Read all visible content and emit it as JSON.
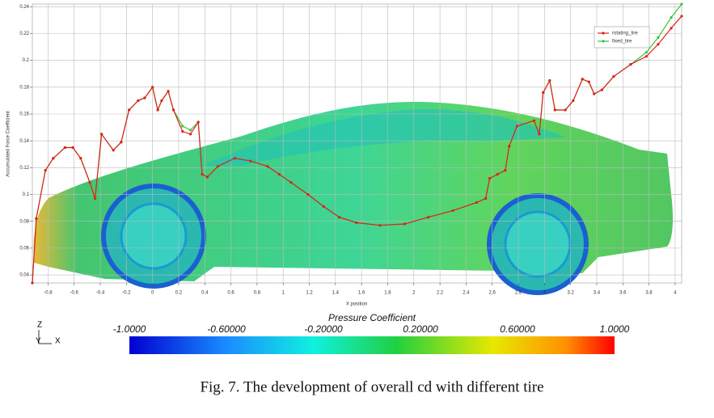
{
  "chart_data": {
    "type": "line",
    "x_label": "X position",
    "y_label": "Accumulated Force Coefficient",
    "x": [
      -0.92,
      -0.89,
      -0.82,
      -0.76,
      -0.67,
      -0.61,
      -0.55,
      -0.48,
      -0.44,
      -0.39,
      -0.3,
      -0.24,
      -0.18,
      -0.11,
      -0.06,
      0.0,
      0.04,
      0.07,
      0.12,
      0.16,
      0.23,
      0.29,
      0.35,
      0.38,
      0.42,
      0.5,
      0.63,
      0.75,
      0.88,
      0.97,
      1.06,
      1.19,
      1.31,
      1.43,
      1.56,
      1.74,
      1.93,
      2.11,
      2.3,
      2.48,
      2.55,
      2.58,
      2.64,
      2.7,
      2.73,
      2.79,
      2.92,
      2.96,
      2.99,
      3.04,
      3.08,
      3.16,
      3.22,
      3.29,
      3.34,
      3.38,
      3.44,
      3.53,
      3.66,
      3.78,
      3.87,
      3.97,
      4.05
    ],
    "series": [
      {
        "name": "rotating_tire",
        "color": "#e0201c",
        "values": [
          0.034,
          0.082,
          0.118,
          0.127,
          0.135,
          0.135,
          0.127,
          0.109,
          0.097,
          0.145,
          0.133,
          0.139,
          0.163,
          0.17,
          0.172,
          0.18,
          0.163,
          0.17,
          0.177,
          0.163,
          0.147,
          0.145,
          0.154,
          0.115,
          0.113,
          0.121,
          0.127,
          0.125,
          0.121,
          0.115,
          0.109,
          0.1,
          0.091,
          0.083,
          0.079,
          0.077,
          0.078,
          0.083,
          0.088,
          0.094,
          0.097,
          0.112,
          0.115,
          0.118,
          0.136,
          0.151,
          0.155,
          0.145,
          0.176,
          0.185,
          0.163,
          0.163,
          0.17,
          0.186,
          0.184,
          0.175,
          0.178,
          0.188,
          0.197,
          0.203,
          0.212,
          0.224,
          0.233
        ]
      },
      {
        "name": "fixed_tire",
        "color": "#3cc43c",
        "values": [
          0.034,
          0.082,
          0.118,
          0.127,
          0.135,
          0.135,
          0.127,
          0.109,
          0.097,
          0.145,
          0.133,
          0.139,
          0.163,
          0.17,
          0.172,
          0.18,
          0.163,
          0.17,
          0.177,
          0.163,
          0.151,
          0.148,
          0.154,
          0.115,
          0.113,
          0.121,
          0.127,
          0.125,
          0.121,
          0.115,
          0.109,
          0.1,
          0.091,
          0.083,
          0.079,
          0.077,
          0.078,
          0.083,
          0.088,
          0.094,
          0.097,
          0.112,
          0.115,
          0.118,
          0.136,
          0.151,
          0.155,
          0.145,
          0.176,
          0.185,
          0.163,
          0.163,
          0.17,
          0.186,
          0.184,
          0.175,
          0.178,
          0.188,
          0.197,
          0.206,
          0.217,
          0.232,
          0.242
        ]
      }
    ],
    "xlim": [
      -0.92,
      4.05
    ],
    "xticks": [
      -0.8,
      -0.6,
      -0.4,
      -0.2,
      0,
      0.2,
      0.4,
      0.6,
      0.8,
      1,
      1.2,
      1.4,
      1.6,
      1.8,
      2,
      2.2,
      2.4,
      2.6,
      2.8,
      3,
      3.2,
      3.4,
      3.6,
      3.8,
      4
    ],
    "ylim": [
      0.034,
      0.242
    ],
    "yticks": [
      0.04,
      0.06,
      0.08,
      0.1,
      0.12,
      0.14,
      0.16,
      0.18,
      0.2,
      0.22,
      0.24
    ],
    "grid": true,
    "legend": "upper right",
    "colorbar": {
      "title": "Pressure Coefficient",
      "labels": [
        "-1.0000",
        "-0.60000",
        "-0.20000",
        "0.20000",
        "0.60000",
        "1.0000"
      ]
    },
    "axes_triad": [
      "Z",
      "Y",
      "X"
    ],
    "caption": "Fig. 7. The development of overall cd with different tire"
  }
}
